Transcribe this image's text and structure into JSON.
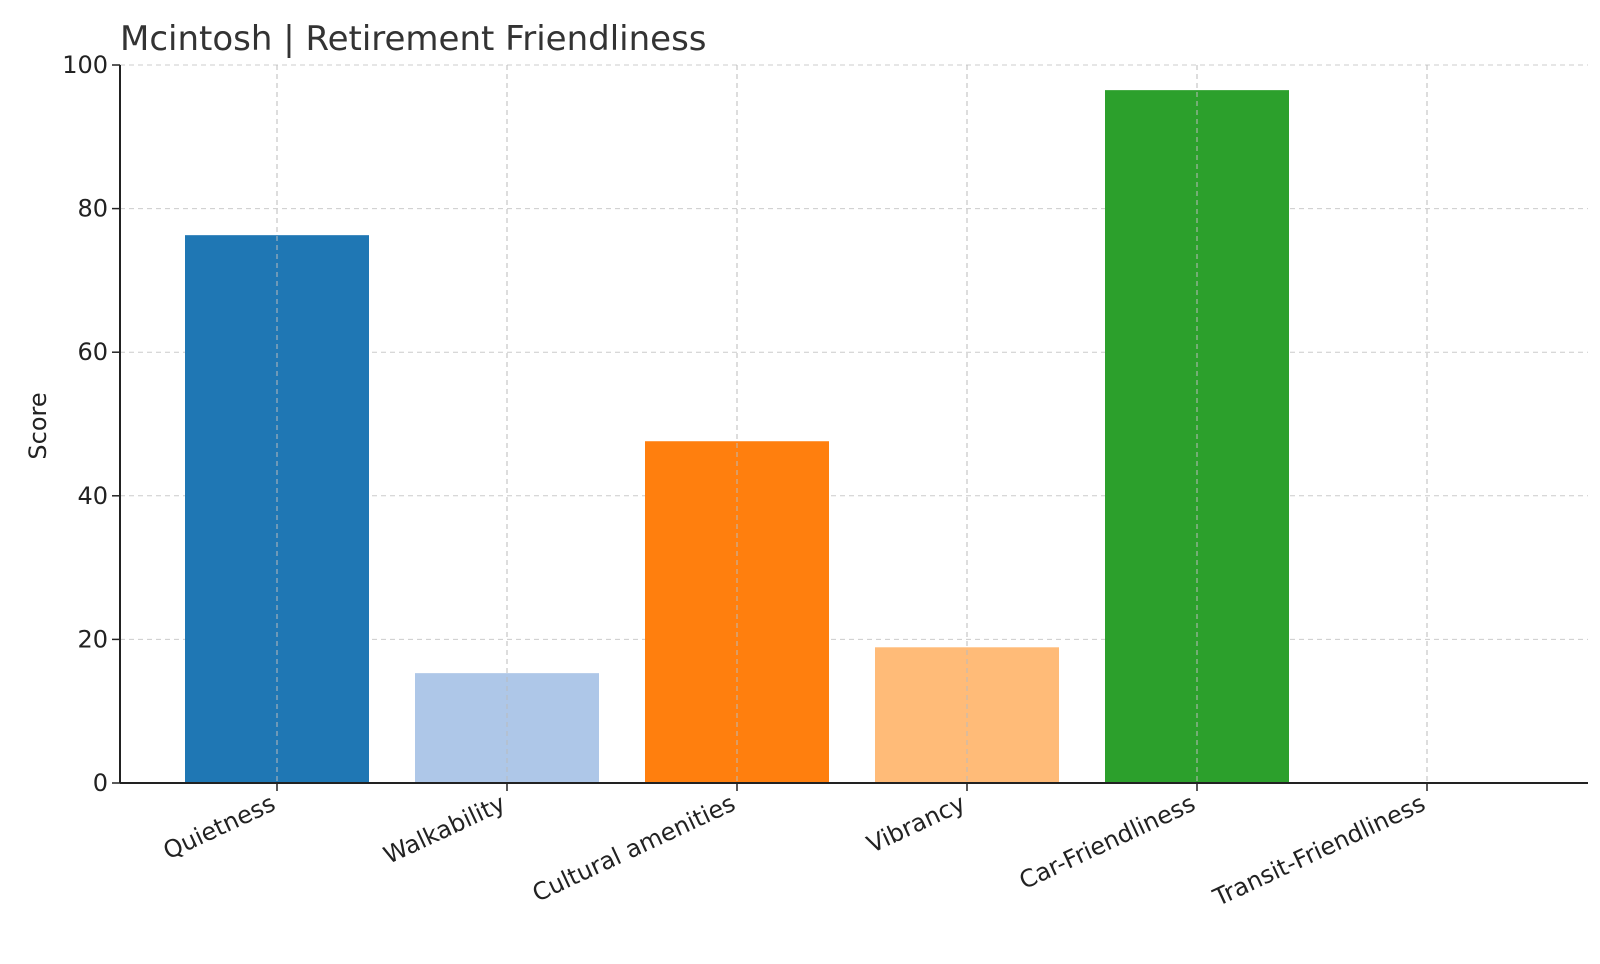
{
  "chart_data": {
    "type": "bar",
    "title": "Mcintosh | Retirement Friendliness",
    "xlabel": "",
    "ylabel": "Score",
    "ylim": [
      0,
      100
    ],
    "yticks": [
      0,
      20,
      40,
      60,
      80,
      100
    ],
    "grid": true,
    "categories": [
      "Quietness",
      "Walkability",
      "Cultural amenities",
      "Vibrancy",
      "Car-Friendliness",
      "Transit-Friendliness"
    ],
    "values": [
      76.3,
      15.3,
      47.6,
      18.9,
      96.5,
      0
    ],
    "colors": [
      "#1f77b4",
      "#aec7e8",
      "#ff7f0e",
      "#ffbb78",
      "#2ca02c",
      "#98df8a"
    ]
  }
}
